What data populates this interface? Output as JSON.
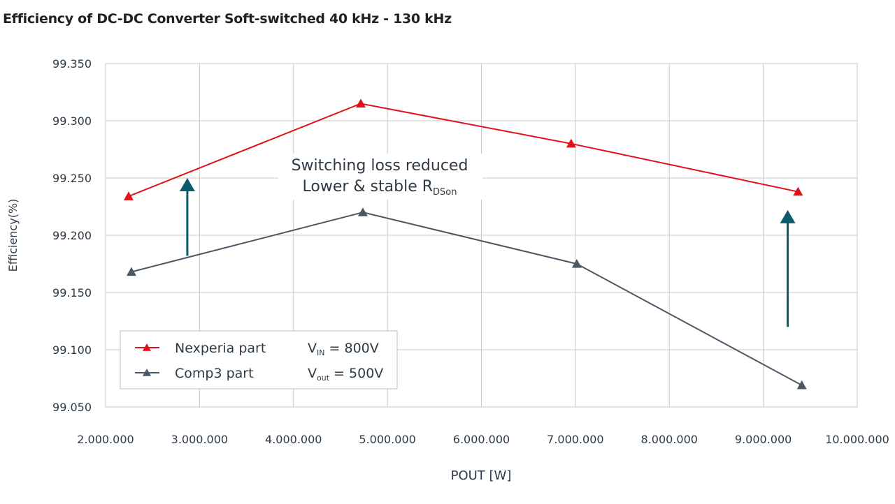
{
  "chart_data": {
    "type": "line",
    "title": "Efficiency of DC-DC Converter Soft-switched 40 kHz - 130 kHz",
    "xlabel": "POUT [W]",
    "ylabel": "Efficiency(%)",
    "xlim": [
      2000000,
      10000000
    ],
    "ylim": [
      99.05,
      99.35
    ],
    "grid": true,
    "x_ticks": [
      2000000,
      3000000,
      4000000,
      5000000,
      6000000,
      7000000,
      8000000,
      9000000,
      10000000
    ],
    "x_tick_labels": [
      "2.000.000",
      "3.000.000",
      "4.000.000",
      "5.000.000",
      "6.000.000",
      "7.000.000",
      "8.000.000",
      "9.000.000",
      "10.000.000"
    ],
    "y_ticks": [
      99.05,
      99.1,
      99.15,
      99.2,
      99.25,
      99.3,
      99.35
    ],
    "y_tick_labels": [
      "99.050",
      "99.100",
      "99.150",
      "99.200",
      "99.250",
      "99.300",
      "99.350"
    ],
    "series": [
      {
        "name": "Nexperia part",
        "color": "#e3101b",
        "marker": "triangle",
        "x": [
          2245000,
          4716000,
          6955000,
          9370000
        ],
        "y": [
          99.234,
          99.315,
          99.28,
          99.238
        ]
      },
      {
        "name": "Comp3 part",
        "color": "#4a5866",
        "marker": "triangle",
        "x": [
          2275000,
          4738000,
          7015000,
          9410000
        ],
        "y": [
          99.168,
          99.22,
          99.175,
          99.069
        ]
      }
    ],
    "legend": {
      "placement": "bottom-left",
      "conditions": [
        {
          "main": "V",
          "sub": "IN",
          "rest": " = 800V"
        },
        {
          "main": "V",
          "sub": "out",
          "rest": " = 500V"
        }
      ]
    },
    "annotation": {
      "line1": "Switching loss reduced",
      "line2_main": "Lower & stable R",
      "line2_sub": "DSon"
    },
    "arrows": {
      "color": "#0d5a6c",
      "items": [
        {
          "x": 2870000,
          "y_from": 99.182,
          "y_to": 99.25
        },
        {
          "x": 9260000,
          "y_from": 99.12,
          "y_to": 99.222
        }
      ]
    }
  }
}
